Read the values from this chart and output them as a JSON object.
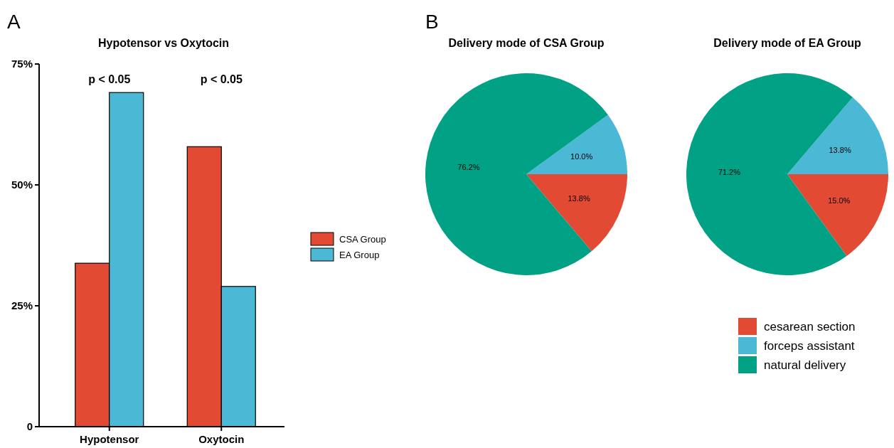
{
  "chart_data": [
    {
      "type": "bar",
      "title": "Hypotensor vs Oxytocin",
      "categories": [
        "Hypotensor",
        "Oxytocin"
      ],
      "series": [
        {
          "name": "CSA Group",
          "color": "#e34a33",
          "values": [
            33.8,
            57.9
          ]
        },
        {
          "name": "EA Group",
          "color": "#4bb8d6",
          "values": [
            69.1,
            29.0
          ]
        }
      ],
      "ylim": [
        0,
        75
      ],
      "yticks": [
        0,
        {
          "value": 25,
          "label": "25%"
        },
        {
          "value": 50,
          "label": "50%"
        },
        {
          "value": 75,
          "label": "75%"
        }
      ],
      "grid": false,
      "legend": "right",
      "annotations": [
        "A",
        "p < 0.05",
        "p < 0.05"
      ]
    },
    {
      "type": "pie",
      "title": "Delivery mode of CSA Group",
      "categories": [
        null,
        null,
        null
      ],
      "values": [
        13.8,
        10.0,
        76.2
      ],
      "value_labels": [
        "13.8%",
        "10.0%",
        "76.2%"
      ],
      "colors": [
        "#e34a33",
        "#4bb8d6",
        "#00a184"
      ],
      "annotations": [
        "B"
      ]
    },
    {
      "type": "pie",
      "title": "Delivery mode of EA Group",
      "categories": [
        "cesarean section",
        "forceps assistant",
        "natural delivery"
      ],
      "values": [
        15.0,
        13.8,
        71.2
      ],
      "value_labels": [
        "15.0%",
        "13.8%",
        "71.2%"
      ],
      "colors": [
        "#e34a33",
        "#4bb8d6",
        "#00a184"
      ],
      "legend": "bottom right"
    }
  ]
}
